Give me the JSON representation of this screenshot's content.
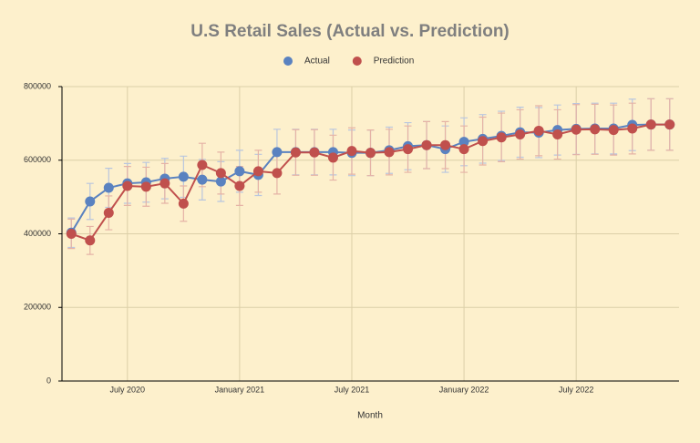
{
  "chart_data": {
    "type": "line",
    "title": "U.S Retail Sales (Actual vs. Prediction)",
    "x_label": "Month",
    "x": [
      "2020-04",
      "2020-05",
      "2020-06",
      "2020-07",
      "2020-08",
      "2020-09",
      "2020-10",
      "2020-11",
      "2020-12",
      "2021-01",
      "2021-02",
      "2021-03",
      "2021-04",
      "2021-05",
      "2021-06",
      "2021-07",
      "2021-08",
      "2021-09",
      "2021-10",
      "2021-11",
      "2021-12",
      "2022-01",
      "2022-02",
      "2022-03",
      "2022-04",
      "2022-05",
      "2022-06",
      "2022-07",
      "2022-08",
      "2022-09",
      "2022-10",
      "2022-11",
      "2022-12"
    ],
    "xticks": [
      {
        "value": "2020-07",
        "label": "July 2020"
      },
      {
        "value": "2021-01",
        "label": "January 2021"
      },
      {
        "value": "2021-07",
        "label": "July 2021"
      },
      {
        "value": "2022-01",
        "label": "January 2022"
      },
      {
        "value": "2022-07",
        "label": "July 2022"
      }
    ],
    "ylim": [
      0,
      800000
    ],
    "yticks": [
      0,
      200000,
      400000,
      600000,
      800000
    ],
    "grid": true,
    "legend": "top",
    "series": [
      {
        "name": "Actual",
        "color": "#5a82c0",
        "error_color": "#b9c6de",
        "values": [
          403000,
          488000,
          525000,
          537000,
          540000,
          550000,
          555000,
          547000,
          542000,
          570000,
          560000,
          622000,
          622000,
          622000,
          622000,
          620000,
          620000,
          627000,
          638000,
          641000,
          630000,
          650000,
          658000,
          666000,
          676000,
          675000,
          682000,
          685000,
          686000,
          686000,
          696000,
          697000,
          697000
        ],
        "errors": [
          40000,
          49000,
          53000,
          54000,
          54000,
          55000,
          56000,
          55000,
          54000,
          57000,
          56000,
          62000,
          62000,
          62000,
          62000,
          62000,
          62000,
          63000,
          64000,
          64000,
          63000,
          65000,
          66000,
          67000,
          68000,
          68000,
          68000,
          69000,
          69000,
          69000,
          70000,
          70000,
          70000
        ]
      },
      {
        "name": "Prediction",
        "color": "#c0504d",
        "error_color": "#e5b3a6",
        "values": [
          400000,
          382000,
          457000,
          530000,
          528000,
          537000,
          482000,
          587000,
          565000,
          530000,
          570000,
          565000,
          621000,
          621000,
          607000,
          625000,
          620000,
          622000,
          630000,
          641000,
          641000,
          630000,
          652000,
          662000,
          670000,
          680000,
          670000,
          683000,
          684000,
          682000,
          686000,
          697000,
          697000
        ],
        "errors": [
          40000,
          38000,
          46000,
          53000,
          53000,
          54000,
          48000,
          59000,
          57000,
          53000,
          57000,
          57000,
          62000,
          62000,
          61000,
          63000,
          62000,
          62000,
          63000,
          64000,
          64000,
          63000,
          65000,
          66000,
          67000,
          68000,
          67000,
          68000,
          68000,
          68000,
          69000,
          70000,
          70000
        ]
      }
    ]
  }
}
